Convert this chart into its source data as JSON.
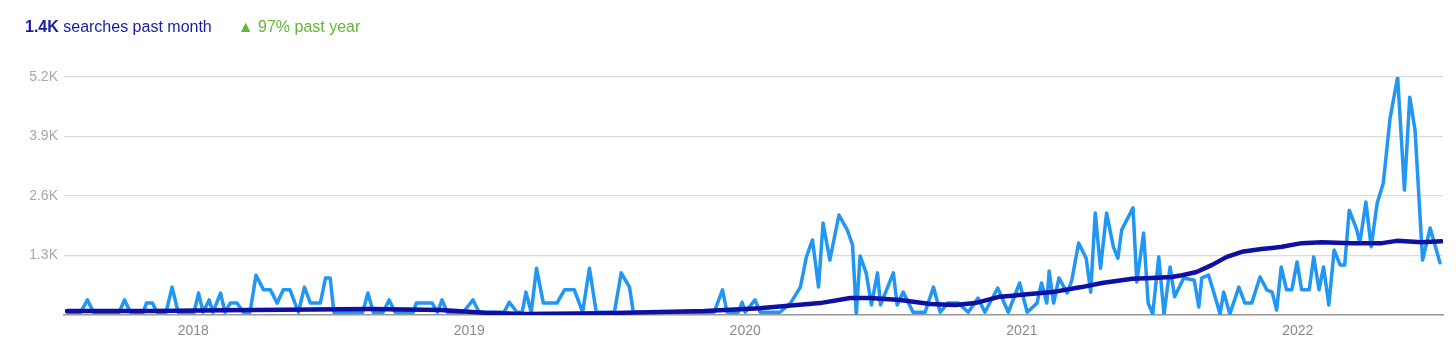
{
  "chart_data": {
    "type": "line",
    "title": "1.4K searches past month",
    "subtitle": "▲ 97% past year",
    "xlim": [
      "2017-07-14",
      "2022-07-12"
    ],
    "xticks": [
      "2018",
      "2019",
      "2020",
      "2021",
      "2022"
    ],
    "ylim": [
      0,
      5200
    ],
    "yticks": [
      {
        "value": 0,
        "label": null
      },
      {
        "value": 1300,
        "label": "1.3K"
      },
      {
        "value": 2600,
        "label": "2.6K"
      },
      {
        "value": 3900,
        "label": "3.9K"
      },
      {
        "value": 5200,
        "label": "5.2K"
      }
    ],
    "grid": "y",
    "legend": false,
    "marker": "none",
    "series": [
      {
        "color": "#2196f3",
        "x": [
          "2017-07-18",
          "2017-08-05",
          "2017-08-14",
          "2017-08-22",
          "2017-09-25",
          "2017-10-02",
          "2017-10-10",
          "2017-10-27",
          "2017-10-31",
          "2017-11-08",
          "2017-11-14",
          "2017-11-26",
          "2017-12-04",
          "2017-12-12",
          "2018-01-02",
          "2018-01-08",
          "2018-01-14",
          "2018-01-22",
          "2018-01-27",
          "2018-02-06",
          "2018-02-12",
          "2018-02-19",
          "2018-02-28",
          "2018-03-08",
          "2018-03-17",
          "2018-03-25",
          "2018-04-04",
          "2018-04-13",
          "2018-04-22",
          "2018-04-30",
          "2018-05-09",
          "2018-05-20",
          "2018-05-28",
          "2018-06-05",
          "2018-06-18",
          "2018-06-25",
          "2018-07-01",
          "2018-07-06",
          "2018-08-13",
          "2018-08-20",
          "2018-08-27",
          "2018-09-09",
          "2018-09-17",
          "2018-09-25",
          "2018-10-19",
          "2018-10-23",
          "2018-11-13",
          "2018-11-20",
          "2018-11-26",
          "2018-12-03",
          "2018-12-24",
          "2019-01-06",
          "2019-01-14",
          "2019-02-16",
          "2019-02-23",
          "2019-03-05",
          "2019-03-12",
          "2019-03-17",
          "2019-03-24",
          "2019-03-31",
          "2019-04-09",
          "2019-04-27",
          "2019-05-07",
          "2019-05-20",
          "2019-05-31",
          "2019-06-09",
          "2019-06-18",
          "2019-07-12",
          "2019-07-21",
          "2019-08-01",
          "2019-08-06",
          "2019-11-21",
          "2019-12-02",
          "2019-12-08",
          "2019-12-23",
          "2019-12-28",
          "2020-01-01",
          "2020-01-14",
          "2020-01-21",
          "2020-02-16",
          "2020-03-01",
          "2020-03-14",
          "2020-03-22",
          "2020-03-30",
          "2020-04-07",
          "2020-04-13",
          "2020-04-22",
          "2020-05-04",
          "2020-05-15",
          "2020-05-22",
          "2020-05-27",
          "2020-06-01",
          "2020-06-09",
          "2020-06-16",
          "2020-06-24",
          "2020-06-28",
          "2020-07-15",
          "2020-07-20",
          "2020-07-28",
          "2020-08-10",
          "2020-08-26",
          "2020-09-06",
          "2020-09-15",
          "2020-09-25",
          "2020-10-09",
          "2020-10-22",
          "2020-11-04",
          "2020-11-13",
          "2020-11-30",
          "2020-12-14",
          "2020-12-29",
          "2021-01-08",
          "2021-01-21",
          "2021-01-27",
          "2021-02-03",
          "2021-02-06",
          "2021-02-12",
          "2021-02-19",
          "2021-03-02",
          "2021-03-08",
          "2021-03-17",
          "2021-03-27",
          "2021-04-02",
          "2021-04-08",
          "2021-04-15",
          "2021-04-23",
          "2021-05-02",
          "2021-05-08",
          "2021-05-13",
          "2021-05-28",
          "2021-06-02",
          "2021-06-11",
          "2021-06-17",
          "2021-06-23",
          "2021-07-01",
          "2021-07-08",
          "2021-07-16",
          "2021-07-22",
          "2021-08-03",
          "2021-08-17",
          "2021-08-23",
          "2021-08-27",
          "2021-09-05",
          "2021-09-16",
          "2021-09-20",
          "2021-09-25",
          "2021-10-03",
          "2021-10-15",
          "2021-10-23",
          "2021-11-01",
          "2021-11-12",
          "2021-11-21",
          "2021-11-28",
          "2021-12-04",
          "2021-12-10",
          "2021-12-17",
          "2021-12-24",
          "2021-12-31",
          "2022-01-06",
          "2022-01-16",
          "2022-01-22",
          "2022-01-29",
          "2022-02-04",
          "2022-02-11",
          "2022-02-18",
          "2022-02-26",
          "2022-03-04",
          "2022-03-10",
          "2022-03-20",
          "2022-03-24",
          "2022-04-01",
          "2022-04-08",
          "2022-04-16",
          "2022-04-24",
          "2022-05-03",
          "2022-05-13",
          "2022-05-22",
          "2022-05-29",
          "2022-06-05",
          "2022-06-15",
          "2022-06-25",
          "2022-07-08"
        ],
        "values": [
          60,
          60,
          330,
          60,
          60,
          330,
          60,
          60,
          260,
          260,
          60,
          60,
          610,
          60,
          60,
          480,
          60,
          330,
          60,
          480,
          60,
          260,
          260,
          60,
          60,
          870,
          550,
          550,
          260,
          550,
          550,
          60,
          610,
          260,
          260,
          810,
          810,
          60,
          60,
          480,
          60,
          60,
          330,
          60,
          60,
          260,
          260,
          60,
          330,
          60,
          60,
          330,
          60,
          60,
          280,
          60,
          60,
          500,
          60,
          1020,
          260,
          260,
          550,
          550,
          60,
          1020,
          60,
          60,
          920,
          610,
          60,
          60,
          550,
          60,
          60,
          280,
          60,
          330,
          60,
          60,
          260,
          610,
          1270,
          1640,
          610,
          2010,
          1200,
          2185,
          1860,
          1530,
          20,
          1290,
          920,
          220,
          920,
          220,
          920,
          220,
          500,
          60,
          60,
          610,
          60,
          260,
          260,
          60,
          370,
          60,
          590,
          60,
          700,
          60,
          260,
          700,
          260,
          960,
          260,
          810,
          480,
          760,
          1570,
          1240,
          500,
          2230,
          1020,
          2230,
          1490,
          1240,
          1860,
          2340,
          720,
          1790,
          260,
          20,
          1270,
          20,
          1050,
          400,
          810,
          760,
          175,
          810,
          870,
          260,
          20,
          500,
          20,
          610,
          260,
          260,
          830,
          550,
          500,
          110,
          1050,
          550,
          550,
          1160,
          550,
          550,
          1270,
          550,
          1050,
          220,
          1420,
          1090,
          1090,
          2290,
          1860,
          1570,
          2470,
          1490,
          2450,
          2880,
          4300,
          5200,
          2730,
          4760,
          4040,
          1200,
          1900,
          1140
        ]
      },
      {
        "color": "#0e0fa3",
        "x": [
          "2017-07-18",
          "2017-11-05",
          "2018-03-17",
          "2018-08-23",
          "2018-11-24",
          "2019-01-21",
          "2019-03-15",
          "2019-06-29",
          "2019-11-08",
          "2020-01-21",
          "2020-04-09",
          "2020-05-19",
          "2020-06-14",
          "2020-07-24",
          "2020-09-02",
          "2020-10-05",
          "2020-10-31",
          "2020-12-03",
          "2021-01-01",
          "2021-02-10",
          "2021-03-21",
          "2021-04-17",
          "2021-05-27",
          "2021-06-22",
          "2021-07-18",
          "2021-08-01",
          "2021-08-20",
          "2021-09-09",
          "2021-09-29",
          "2021-10-19",
          "2021-11-14",
          "2021-12-11",
          "2022-01-06",
          "2022-02-02",
          "2022-03-13",
          "2022-04-22",
          "2022-05-12",
          "2022-06-14",
          "2022-07-10"
        ],
        "values": [
          90,
          90,
          110,
          130,
          110,
          50,
          20,
          40,
          90,
          150,
          260,
          370,
          370,
          330,
          240,
          220,
          260,
          400,
          440,
          500,
          610,
          700,
          790,
          810,
          830,
          870,
          940,
          1090,
          1270,
          1380,
          1440,
          1490,
          1570,
          1590,
          1570,
          1570,
          1620,
          1590,
          1610
        ]
      }
    ]
  }
}
